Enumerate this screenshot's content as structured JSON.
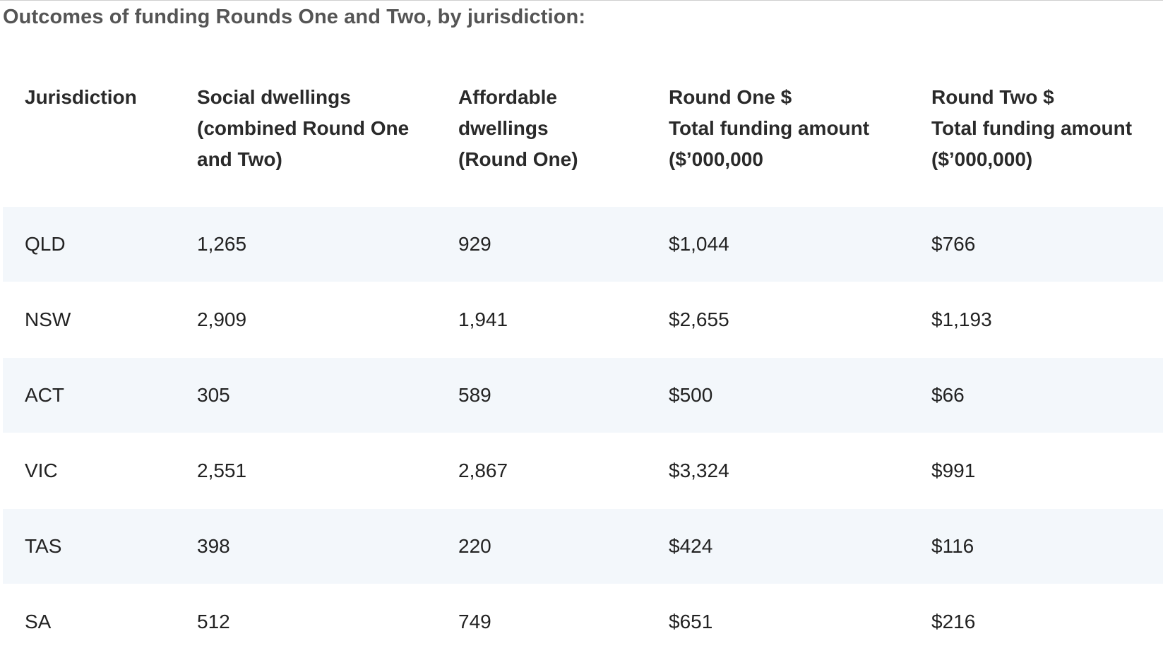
{
  "heading": "Outcomes of funding Rounds One and Two, by jurisdiction:",
  "table": {
    "headers": [
      [
        "Jurisdiction"
      ],
      [
        "Social dwellings",
        "(combined Round One",
        "and Two)"
      ],
      [
        "Affordable",
        "dwellings",
        "(Round One)"
      ],
      [
        "Round One $",
        "Total funding amount",
        "($’000,000"
      ],
      [
        "Round Two $",
        "Total funding amount",
        "($’000,000)"
      ]
    ],
    "rows": [
      [
        "QLD",
        "1,265",
        "929",
        "$1,044",
        "$766"
      ],
      [
        "NSW",
        "2,909",
        "1,941",
        "$2,655",
        "$1,193"
      ],
      [
        "ACT",
        "305",
        "589",
        "$500",
        "$66"
      ],
      [
        "VIC",
        "2,551",
        "2,867",
        "$3,324",
        "$991"
      ],
      [
        "TAS",
        "398",
        "220",
        "$424",
        "$116"
      ],
      [
        "SA",
        "512",
        "749",
        "$651",
        "$216"
      ]
    ]
  },
  "colors": {
    "stripe": "#f3f7fb",
    "heading": "#555555",
    "text": "#222222"
  }
}
